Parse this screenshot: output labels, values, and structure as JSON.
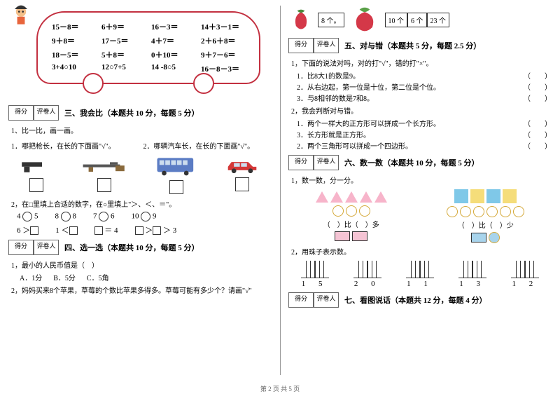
{
  "bus_problems": [
    "15－8＝",
    "6＋9＝",
    "16－3＝",
    "14＋3－1＝",
    "9＋8＝",
    "17－5＝",
    "4＋7＝",
    "2＋6＋8＝",
    "18－5＝",
    "5＋8＝",
    "0＋10＝",
    "9＋7－6＝",
    "3+4○10",
    "12○7+5",
    "14 -8○5",
    "16－8－3＝"
  ],
  "sections": {
    "s3": {
      "title": "三、我会比（本题共 10 分，每题 5 分）"
    },
    "s4": {
      "title": "四、选一选（本题共 10 分，每题 5 分）"
    },
    "s5": {
      "title": "五、对与错（本题共 5 分，每题 2.5 分）"
    },
    "s6": {
      "title": "六、数一数（本题共 10 分，每题 5 分）"
    },
    "s7": {
      "title": "七、看图说话（本题共 12 分，每题 4 分）"
    }
  },
  "score_labels": {
    "score": "得分",
    "grader": "评卷人"
  },
  "q3_1": "1、比一比，画一画。",
  "q3_1a": "1．哪把枪长，在长的下面画\"√\"。",
  "q3_1b": "2．哪辆汽车长，在长的下面画\"√\"。",
  "q3_2": "2，在□里填上合适的数字，在○里填上\"＞、＜、＝\"。",
  "compare_rows": [
    [
      "4 ○ 5",
      "8 ○ 8",
      "7 ○ 6",
      "10 ○ 9"
    ],
    [
      "6 ＞□",
      "1 ＜□",
      "□ ＝ 4",
      "□ ＞□ ＞ 3"
    ]
  ],
  "q4_1": "1，最小的人民币值是（　）",
  "q4_1_opts": [
    "A．1分",
    "B．5分",
    "C．5角"
  ],
  "q4_2": "2，妈妈买来8个苹果，草莓的个数比苹果多得多。草莓可能有多少个？请画\"√\"",
  "fruit_boxes": [
    "8 个。",
    "10 个",
    "6 个",
    "23 个"
  ],
  "q5_1": "1，下面的说法对吗，对的打\"√\"，错的打\"×\"。",
  "q5_1_items": [
    "1．比8大1的数是9。",
    "2．从右边起，第一位是十位，第二位是个位。",
    "3．与8相邻的数是7和8。"
  ],
  "q5_2": "2，我会判断对与错。",
  "q5_2_items": [
    "1．两个一样大的正方形可以拼成一个长方形。",
    "3．长方形就是正方形。",
    "2．两个三角形可以拼成一个四边形。"
  ],
  "q6_1": "1，数一数，分一分。",
  "compare_more": "（　）比（　）多",
  "compare_less": "（　）比（　）少",
  "q6_2": "2，用珠子表示数。",
  "tick_numbers": [
    "1  5",
    "2  0",
    "1  1",
    "1  3",
    "1  2"
  ],
  "footer": "第 2 页 共 5 页",
  "colors": {
    "bus_border": "#c33040",
    "triangle": "#f7b4ca",
    "sq_blue": "#7fc8e8",
    "sq_yellow": "#f5dd7a",
    "circle_border": "#d4a838",
    "rect_pink": "#f5c4d4",
    "rect_blue": "#a8d4ec"
  }
}
